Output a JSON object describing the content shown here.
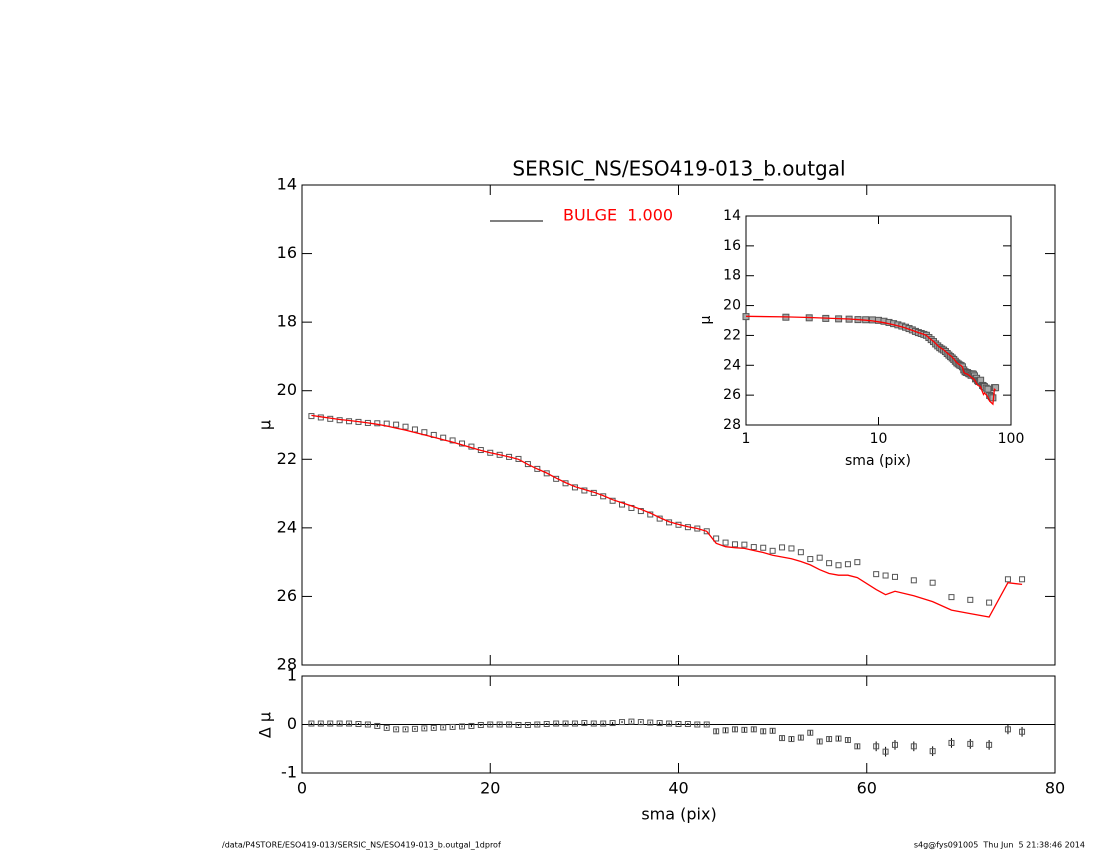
{
  "chart_data": [
    {
      "type": "line",
      "title": "SERSIC_NS/ESO419-013_b.outgal",
      "ylabel": "μ",
      "x": [
        1,
        2,
        3,
        4,
        5,
        6,
        7,
        8,
        9,
        10,
        11,
        12,
        13,
        14,
        15,
        16,
        17,
        18,
        19,
        20,
        21,
        22,
        23,
        24,
        25,
        26,
        27,
        28,
        29,
        30,
        31,
        32,
        33,
        34,
        35,
        36,
        37,
        38,
        39,
        40,
        41,
        42,
        43,
        44,
        45,
        46,
        47,
        48,
        49,
        50,
        51,
        52,
        53,
        54,
        55,
        56,
        57,
        58,
        59,
        61,
        62,
        63,
        65,
        67,
        69,
        71,
        73,
        75,
        76.5
      ],
      "series": [
        {
          "color": "#555555",
          "marker": "square",
          "values": [
            20.74,
            20.78,
            20.82,
            20.86,
            20.89,
            20.91,
            20.94,
            20.95,
            20.96,
            20.99,
            21.05,
            21.13,
            21.21,
            21.29,
            21.37,
            21.45,
            21.54,
            21.63,
            21.73,
            21.81,
            21.87,
            21.93,
            21.99,
            22.14,
            22.28,
            22.41,
            22.57,
            22.7,
            22.82,
            22.91,
            22.98,
            23.08,
            23.21,
            23.32,
            23.42,
            23.51,
            23.61,
            23.73,
            23.84,
            23.91,
            23.98,
            24.02,
            24.1,
            24.31,
            24.43,
            24.48,
            24.49,
            24.56,
            24.58,
            24.67,
            24.57,
            24.6,
            24.71,
            24.91,
            24.87,
            25.03,
            25.09,
            25.06,
            25.0,
            25.35,
            25.39,
            25.43,
            25.53,
            25.6,
            26.02,
            26.1,
            26.18,
            25.5,
            25.5
          ]
        },
        {
          "name": "BULGE  1.000",
          "color": "#ff0000",
          "values": [
            20.72,
            20.76,
            20.8,
            20.84,
            20.87,
            20.9,
            20.94,
            20.98,
            21.03,
            21.09,
            21.15,
            21.22,
            21.29,
            21.36,
            21.43,
            21.5,
            21.58,
            21.66,
            21.74,
            21.81,
            21.87,
            21.93,
            22.0,
            22.15,
            22.28,
            22.4,
            22.55,
            22.68,
            22.8,
            22.88,
            22.96,
            23.06,
            23.18,
            23.27,
            23.36,
            23.46,
            23.57,
            23.7,
            23.82,
            23.9,
            23.97,
            24.02,
            24.1,
            24.45,
            24.55,
            24.58,
            24.6,
            24.66,
            24.72,
            24.8,
            24.85,
            24.9,
            24.98,
            25.08,
            25.22,
            25.33,
            25.38,
            25.38,
            25.45,
            25.8,
            25.95,
            25.85,
            25.98,
            26.15,
            26.4,
            26.5,
            26.6,
            25.6,
            25.65
          ]
        }
      ],
      "xlim": [
        0,
        80
      ],
      "xticks": [
        0,
        20,
        40,
        60,
        80
      ],
      "ylim": [
        14,
        28
      ],
      "yticks": [
        14,
        16,
        18,
        20,
        22,
        24,
        26,
        28
      ],
      "y_inverted": true
    },
    {
      "type": "scatter",
      "ylabel": "Δ μ",
      "xlabel": "sma (pix)",
      "color": "#555555",
      "values": [
        0.02,
        0.02,
        0.02,
        0.02,
        0.02,
        0.01,
        0,
        -0.03,
        -0.07,
        -0.1,
        -0.1,
        -0.09,
        -0.08,
        -0.07,
        -0.06,
        -0.05,
        -0.04,
        -0.03,
        -0.01,
        0,
        0,
        0,
        -0.01,
        -0.01,
        0,
        0.01,
        0.02,
        0.02,
        0.02,
        0.03,
        0.02,
        0.02,
        0.03,
        0.05,
        0.06,
        0.05,
        0.04,
        0.03,
        0.02,
        0.01,
        0.01,
        0,
        0,
        -0.14,
        -0.12,
        -0.1,
        -0.11,
        -0.1,
        -0.14,
        -0.13,
        -0.28,
        -0.3,
        -0.27,
        -0.17,
        -0.35,
        -0.3,
        -0.29,
        -0.32,
        -0.45,
        -0.45,
        -0.56,
        -0.42,
        -0.45,
        -0.55,
        -0.38,
        -0.4,
        -0.42,
        -0.1,
        -0.15
      ],
      "errors": [
        0.02,
        0.02,
        0.02,
        0.02,
        0.02,
        0.02,
        0.02,
        0.02,
        0.02,
        0.02,
        0.02,
        0.02,
        0.02,
        0.02,
        0.02,
        0.02,
        0.02,
        0.02,
        0.02,
        0.02,
        0.02,
        0.02,
        0.02,
        0.02,
        0.02,
        0.02,
        0.02,
        0.02,
        0.02,
        0.02,
        0.02,
        0.02,
        0.02,
        0.02,
        0.02,
        0.02,
        0.02,
        0.02,
        0.02,
        0.02,
        0.02,
        0.02,
        0.02,
        0.05,
        0.05,
        0.05,
        0.05,
        0.05,
        0.05,
        0.05,
        0.05,
        0.05,
        0.05,
        0.05,
        0.05,
        0.05,
        0.05,
        0.05,
        0.05,
        0.1,
        0.1,
        0.1,
        0.1,
        0.1,
        0.1,
        0.1,
        0.1,
        0.1,
        0.1
      ],
      "xlim": [
        0,
        80
      ],
      "xticks": [
        0,
        20,
        40,
        60,
        80
      ],
      "ylim": [
        -1,
        1
      ],
      "yticks": [
        -1,
        0,
        1
      ]
    },
    {
      "type": "line",
      "ylabel": "μ",
      "xlabel": "sma (pix)",
      "xlog": true,
      "xlim": [
        1,
        100
      ],
      "xticks": [
        1,
        10,
        100
      ],
      "ylim": [
        14,
        28
      ],
      "yticks": [
        14,
        16,
        18,
        20,
        22,
        24,
        26,
        28
      ],
      "y_inverted": true
    }
  ],
  "footer": {
    "left": "/data/P4STORE/ESO419-013/SERSIC_NS/ESO419-013_b.outgal_1dprof",
    "right": "s4g@fys091005  Thu Jun  5 21:38:46 2014"
  }
}
